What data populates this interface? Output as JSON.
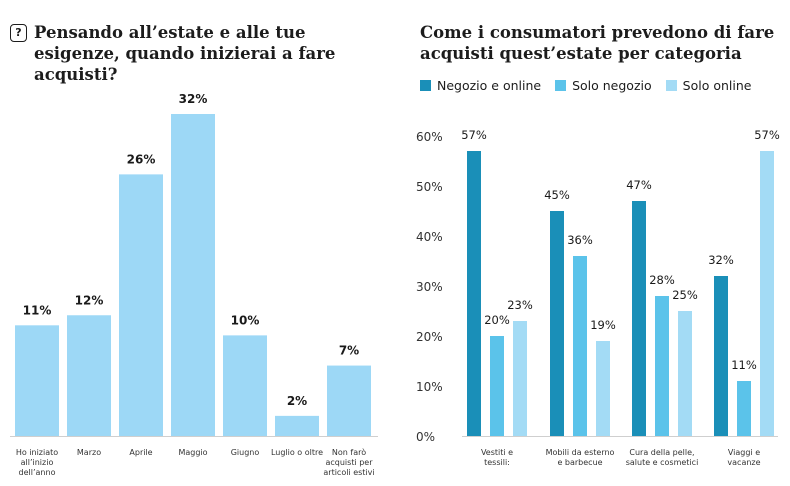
{
  "colors": {
    "dark": "#1a8fb8",
    "mid": "#5bc3ea",
    "light": "#a3dbf5",
    "left_bar": "#9dd8f6",
    "axis": "#cfcfcf",
    "grid_text": "#333333"
  },
  "left_title": "Pensando all’estate e alle tue esigenze, quando inizierai a fare acquisti?",
  "right_title": "Come i consumatori prevedono di fare acquisti quest’estate per categoria",
  "icon": {
    "name": "question-icon",
    "glyph": "?"
  },
  "chart_data": [
    {
      "type": "bar",
      "title": "Pensando all’estate e alle tue esigenze, quando inizierai a fare acquisti?",
      "categories": [
        [
          "Ho iniziato",
          "all’inizio",
          "dell’anno"
        ],
        [
          "Marzo"
        ],
        [
          "Aprile"
        ],
        [
          "Maggio"
        ],
        [
          "Giugno"
        ],
        [
          "Luglio o oltre"
        ],
        [
          "Non farò",
          "acquisti per",
          "articoli estivi"
        ]
      ],
      "values": [
        11,
        12,
        26,
        32,
        10,
        2,
        7
      ],
      "value_labels": [
        "11%",
        "12%",
        "26%",
        "32%",
        "10%",
        "2%",
        "7%"
      ],
      "ylim": [
        0,
        32
      ]
    },
    {
      "type": "bar",
      "title": "Come i consumatori prevedono di fare acquisti quest’estate per categoria",
      "categories": [
        [
          "Vestiti e",
          "tessili:"
        ],
        [
          "Mobili da esterno",
          "e barbecue"
        ],
        [
          "Cura della pelle,",
          "salute e cosmetici"
        ],
        [
          "Viaggi e",
          "vacanze"
        ]
      ],
      "series": [
        {
          "name": "Negozio e online",
          "values": [
            57,
            45,
            47,
            32
          ],
          "labels": [
            "57%",
            "45%",
            "47%",
            "32%"
          ]
        },
        {
          "name": "Solo negozio",
          "values": [
            20,
            36,
            28,
            11
          ],
          "labels": [
            "20%",
            "36%",
            "28%",
            "11%"
          ]
        },
        {
          "name": "Solo online",
          "values": [
            23,
            19,
            25,
            57
          ],
          "labels": [
            "23%",
            "19%",
            "25%",
            "57%"
          ]
        }
      ],
      "ylim": [
        0,
        60
      ],
      "yticks": [
        "0%",
        "10%",
        "20%",
        "30%",
        "40%",
        "50%",
        "60%"
      ],
      "grid": false,
      "legend": "top-left"
    }
  ]
}
